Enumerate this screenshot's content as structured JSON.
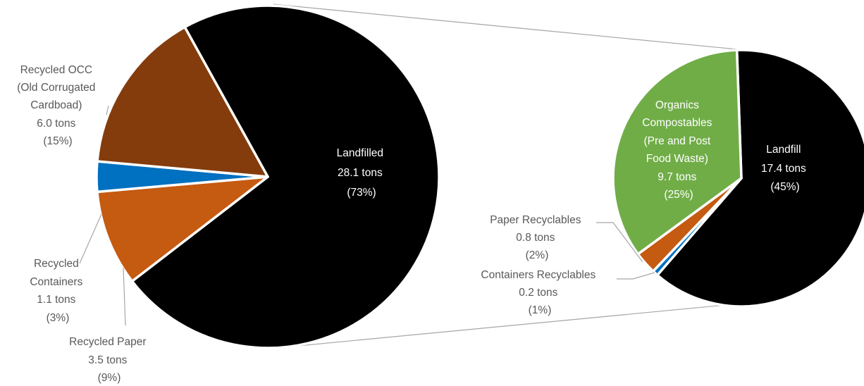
{
  "chart_data": [
    {
      "type": "pie",
      "title": "",
      "slices": [
        {
          "label": "Landfilled",
          "value_text": "28.1 tons",
          "pct_text": "(73%)",
          "value": 28.1,
          "percent": 73,
          "color": "#000000",
          "label_color": "#ffffff"
        },
        {
          "label": "Recycled Paper",
          "value_text": "3.5 tons",
          "pct_text": "(9%)",
          "value": 3.5,
          "percent": 9,
          "color": "#C55A11",
          "label_color": "#595959"
        },
        {
          "label": "Recycled Containers",
          "value_text": "1.1 tons",
          "pct_text": "(3%)",
          "value": 1.1,
          "percent": 3,
          "color": "#0070C0",
          "label_color": "#595959"
        },
        {
          "label": "Recycled OCC (Old Corrugated Cardboad)",
          "value_text": "6.0 tons",
          "pct_text": "(15%)",
          "value": 6.0,
          "percent": 15,
          "color": "#843C0C",
          "label_color": "#595959"
        }
      ]
    },
    {
      "type": "pie",
      "title": "",
      "slices": [
        {
          "label": "Landfill",
          "value_text": "17.4 tons",
          "pct_text": "(45%)",
          "value": 17.4,
          "percent": 45,
          "color": "#000000",
          "label_color": "#ffffff"
        },
        {
          "label": "Containers Recyclables",
          "value_text": "0.2 tons",
          "pct_text": "(1%)",
          "value": 0.2,
          "percent": 1,
          "color": "#0070C0",
          "label_color": "#595959"
        },
        {
          "label": "Paper Recyclables",
          "value_text": "0.8 tons",
          "pct_text": "(2%)",
          "value": 0.8,
          "percent": 2,
          "color": "#C55A11",
          "label_color": "#595959"
        },
        {
          "label": "Organics Compostables (Pre and Post Food Waste)",
          "value_text": "9.7 tons",
          "pct_text": "(25%)",
          "value": 9.7,
          "percent": 25,
          "color": "#70AD47",
          "label_color": "#ffffff"
        }
      ]
    }
  ],
  "labels": {
    "landfilled": [
      "Landfilled",
      "28.1 tons",
      "(73%)"
    ],
    "occ": [
      "Recycled OCC",
      "(Old Corrugated",
      "Cardboad)",
      "6.0 tons",
      "(15%)"
    ],
    "containers": [
      "Recycled",
      "Containers",
      "1.1 tons",
      "(3%)"
    ],
    "paper": [
      "Recycled Paper",
      "3.5 tons",
      "(9%)"
    ],
    "organics": [
      "Organics",
      "Compostables",
      "(Pre and Post",
      "Food Waste)",
      "9.7 tons",
      "(25%)"
    ],
    "landfill": [
      "Landfill",
      "17.4 tons",
      "(45%)"
    ],
    "paper_recyclables": [
      "Paper Recyclables",
      "0.8 tons",
      "(2%)"
    ],
    "containers_recyclables": [
      "Containers Recyclables",
      "0.2 tons",
      "(1%)"
    ]
  }
}
